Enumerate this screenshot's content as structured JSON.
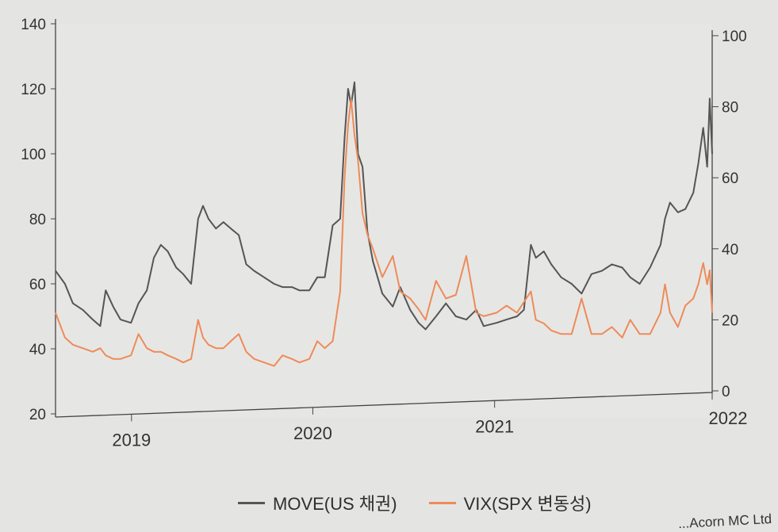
{
  "chart_data": {
    "type": "line",
    "title": "",
    "xlabel": "",
    "ylabel": "",
    "x_ticks": [
      "2019",
      "2020",
      "2021",
      "2022"
    ],
    "x_range": [
      "2018-08",
      "2022-03"
    ],
    "left_axis": {
      "range": [
        20,
        140
      ],
      "ticks": [
        "20",
        "40",
        "60",
        "80",
        "100",
        "120",
        "140"
      ]
    },
    "right_axis": {
      "range": [
        0,
        100
      ],
      "ticks": [
        "0",
        "20",
        "40",
        "60",
        "80",
        "100"
      ]
    },
    "grid": false,
    "legend_position": "bottom-center",
    "series": [
      {
        "name": "MOVE(US 채권)",
        "axis": "left",
        "color": "#555555",
        "points": [
          [
            "2018-08-01",
            64
          ],
          [
            "2018-08-20",
            60
          ],
          [
            "2018-09-05",
            54
          ],
          [
            "2018-09-25",
            52
          ],
          [
            "2018-10-15",
            49
          ],
          [
            "2018-10-30",
            47
          ],
          [
            "2018-11-10",
            58
          ],
          [
            "2018-11-25",
            53
          ],
          [
            "2018-12-10",
            49
          ],
          [
            "2018-12-31",
            48
          ],
          [
            "2019-01-15",
            54
          ],
          [
            "2019-02-01",
            58
          ],
          [
            "2019-02-15",
            68
          ],
          [
            "2019-03-01",
            72
          ],
          [
            "2019-03-15",
            70
          ],
          [
            "2019-04-01",
            65
          ],
          [
            "2019-04-15",
            63
          ],
          [
            "2019-05-01",
            60
          ],
          [
            "2019-05-15",
            80
          ],
          [
            "2019-05-25",
            84
          ],
          [
            "2019-06-05",
            80
          ],
          [
            "2019-06-20",
            77
          ],
          [
            "2019-07-05",
            79
          ],
          [
            "2019-07-20",
            77
          ],
          [
            "2019-08-05",
            75
          ],
          [
            "2019-08-20",
            66
          ],
          [
            "2019-09-05",
            64
          ],
          [
            "2019-09-25",
            62
          ],
          [
            "2019-10-15",
            60
          ],
          [
            "2019-11-01",
            59
          ],
          [
            "2019-11-20",
            59
          ],
          [
            "2019-12-05",
            58
          ],
          [
            "2019-12-25",
            58
          ],
          [
            "2020-01-10",
            62
          ],
          [
            "2020-01-25",
            62
          ],
          [
            "2020-02-10",
            78
          ],
          [
            "2020-02-25",
            80
          ],
          [
            "2020-03-05",
            105
          ],
          [
            "2020-03-12",
            120
          ],
          [
            "2020-03-18",
            115
          ],
          [
            "2020-03-25",
            122
          ],
          [
            "2020-04-01",
            100
          ],
          [
            "2020-04-10",
            96
          ],
          [
            "2020-04-20",
            76
          ],
          [
            "2020-05-01",
            67
          ],
          [
            "2020-05-20",
            57
          ],
          [
            "2020-06-10",
            53
          ],
          [
            "2020-06-25",
            59
          ],
          [
            "2020-07-15",
            52
          ],
          [
            "2020-08-01",
            48
          ],
          [
            "2020-08-15",
            46
          ],
          [
            "2020-09-05",
            50
          ],
          [
            "2020-09-25",
            54
          ],
          [
            "2020-10-15",
            50
          ],
          [
            "2020-11-05",
            49
          ],
          [
            "2020-11-25",
            52
          ],
          [
            "2020-12-10",
            47
          ],
          [
            "2021-01-05",
            48
          ],
          [
            "2021-01-25",
            49
          ],
          [
            "2021-02-15",
            50
          ],
          [
            "2021-03-01",
            52
          ],
          [
            "2021-03-15",
            72
          ],
          [
            "2021-03-25",
            68
          ],
          [
            "2021-04-10",
            70
          ],
          [
            "2021-04-25",
            66
          ],
          [
            "2021-05-15",
            62
          ],
          [
            "2021-06-05",
            60
          ],
          [
            "2021-06-25",
            57
          ],
          [
            "2021-07-15",
            63
          ],
          [
            "2021-08-05",
            64
          ],
          [
            "2021-08-25",
            66
          ],
          [
            "2021-09-15",
            65
          ],
          [
            "2021-10-01",
            62
          ],
          [
            "2021-10-20",
            60
          ],
          [
            "2021-11-10",
            65
          ],
          [
            "2021-12-01",
            72
          ],
          [
            "2021-12-10",
            80
          ],
          [
            "2021-12-20",
            85
          ],
          [
            "2022-01-05",
            82
          ],
          [
            "2022-01-20",
            83
          ],
          [
            "2022-02-05",
            88
          ],
          [
            "2022-02-15",
            97
          ],
          [
            "2022-02-25",
            108
          ],
          [
            "2022-03-05",
            96
          ],
          [
            "2022-03-10",
            117
          ],
          [
            "2022-03-15",
            100
          ]
        ]
      },
      {
        "name": "VIX(SPX 변동성)",
        "axis": "right",
        "color": "#ef8a5a",
        "points": [
          [
            "2018-08-01",
            22
          ],
          [
            "2018-08-20",
            15
          ],
          [
            "2018-09-05",
            13
          ],
          [
            "2018-09-25",
            12
          ],
          [
            "2018-10-15",
            11
          ],
          [
            "2018-10-30",
            12
          ],
          [
            "2018-11-10",
            10
          ],
          [
            "2018-11-25",
            9
          ],
          [
            "2018-12-10",
            9
          ],
          [
            "2018-12-31",
            10
          ],
          [
            "2019-01-15",
            16
          ],
          [
            "2019-02-01",
            12
          ],
          [
            "2019-02-15",
            11
          ],
          [
            "2019-03-01",
            11
          ],
          [
            "2019-03-15",
            10
          ],
          [
            "2019-04-01",
            9
          ],
          [
            "2019-04-15",
            8
          ],
          [
            "2019-05-01",
            9
          ],
          [
            "2019-05-15",
            20
          ],
          [
            "2019-05-25",
            15
          ],
          [
            "2019-06-05",
            13
          ],
          [
            "2019-06-20",
            12
          ],
          [
            "2019-07-05",
            12
          ],
          [
            "2019-07-20",
            14
          ],
          [
            "2019-08-05",
            16
          ],
          [
            "2019-08-20",
            11
          ],
          [
            "2019-09-05",
            9
          ],
          [
            "2019-09-25",
            8
          ],
          [
            "2019-10-15",
            7
          ],
          [
            "2019-11-01",
            10
          ],
          [
            "2019-11-20",
            9
          ],
          [
            "2019-12-05",
            8
          ],
          [
            "2019-12-25",
            9
          ],
          [
            "2020-01-10",
            14
          ],
          [
            "2020-01-25",
            12
          ],
          [
            "2020-02-10",
            14
          ],
          [
            "2020-02-25",
            28
          ],
          [
            "2020-03-05",
            60
          ],
          [
            "2020-03-12",
            75
          ],
          [
            "2020-03-18",
            82
          ],
          [
            "2020-03-25",
            72
          ],
          [
            "2020-04-01",
            65
          ],
          [
            "2020-04-10",
            50
          ],
          [
            "2020-04-20",
            44
          ],
          [
            "2020-05-01",
            40
          ],
          [
            "2020-05-20",
            32
          ],
          [
            "2020-06-10",
            38
          ],
          [
            "2020-06-25",
            28
          ],
          [
            "2020-07-15",
            26
          ],
          [
            "2020-08-01",
            23
          ],
          [
            "2020-08-15",
            20
          ],
          [
            "2020-09-05",
            31
          ],
          [
            "2020-09-25",
            26
          ],
          [
            "2020-10-15",
            27
          ],
          [
            "2020-11-05",
            38
          ],
          [
            "2020-11-25",
            22
          ],
          [
            "2020-12-10",
            21
          ],
          [
            "2021-01-05",
            22
          ],
          [
            "2021-01-25",
            24
          ],
          [
            "2021-02-15",
            22
          ],
          [
            "2021-03-01",
            25
          ],
          [
            "2021-03-15",
            28
          ],
          [
            "2021-03-25",
            20
          ],
          [
            "2021-04-10",
            19
          ],
          [
            "2021-04-25",
            17
          ],
          [
            "2021-05-15",
            16
          ],
          [
            "2021-06-05",
            16
          ],
          [
            "2021-06-25",
            26
          ],
          [
            "2021-07-15",
            16
          ],
          [
            "2021-08-05",
            16
          ],
          [
            "2021-08-25",
            18
          ],
          [
            "2021-09-15",
            15
          ],
          [
            "2021-10-01",
            20
          ],
          [
            "2021-10-20",
            16
          ],
          [
            "2021-11-10",
            16
          ],
          [
            "2021-12-01",
            22
          ],
          [
            "2021-12-10",
            30
          ],
          [
            "2021-12-20",
            22
          ],
          [
            "2022-01-05",
            18
          ],
          [
            "2022-01-20",
            24
          ],
          [
            "2022-02-05",
            26
          ],
          [
            "2022-02-15",
            30
          ],
          [
            "2022-02-25",
            36
          ],
          [
            "2022-03-05",
            30
          ],
          [
            "2022-03-10",
            34
          ],
          [
            "2022-03-15",
            22
          ]
        ]
      }
    ]
  },
  "legend": {
    "move_label": "MOVE(US 채권)",
    "vix_label": "VIX(SPX 변동성)",
    "move_color": "#555555",
    "vix_color": "#ef8a5a"
  },
  "credit": "...Acorn MC Ltd"
}
